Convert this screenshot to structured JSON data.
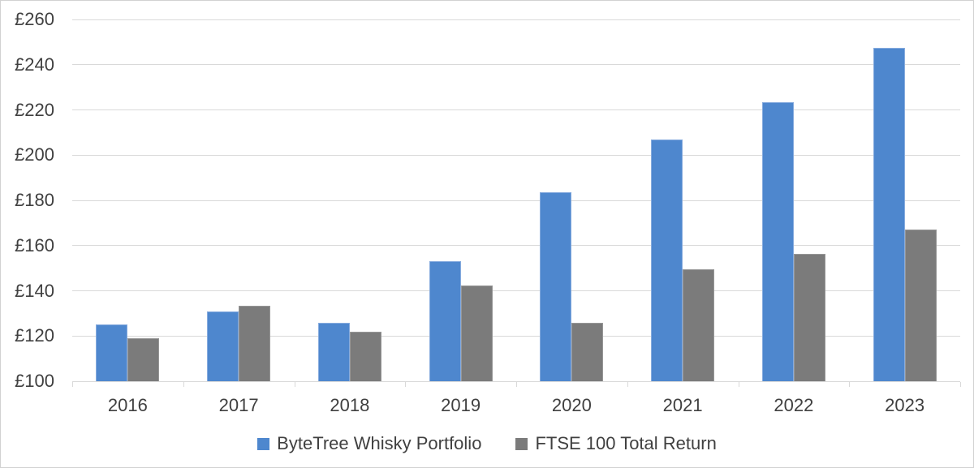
{
  "chart_data": {
    "type": "bar",
    "title": "",
    "categories": [
      "2016",
      "2017",
      "2018",
      "2019",
      "2020",
      "2021",
      "2022",
      "2023"
    ],
    "series": [
      {
        "name": "ByteTree Whisky Portfolio",
        "color": "#4e87ce",
        "border_color": "#86abde",
        "values": [
          125,
          131,
          126,
          153,
          183.5,
          207,
          223.5,
          247.5
        ]
      },
      {
        "name": "FTSE 100 Total Return",
        "color": "#7b7b7b",
        "border_color": "#979797",
        "values": [
          119,
          133.5,
          122,
          142.5,
          126,
          149.5,
          156.5,
          167
        ]
      }
    ],
    "y_axis": {
      "min": 100,
      "max": 260,
      "step": 20,
      "prefix": "£",
      "tick_labels": [
        "£260",
        "£240",
        "£220",
        "£200",
        "£180",
        "£160",
        "£140",
        "£120",
        "£100"
      ]
    },
    "grid": true,
    "legend_position": "bottom"
  },
  "colors": {
    "background": "#ffffff",
    "gridline": "#d9d9d9",
    "axis": "#d9d9d9",
    "text": "#404040",
    "frame_border": "#d2d2d2"
  }
}
